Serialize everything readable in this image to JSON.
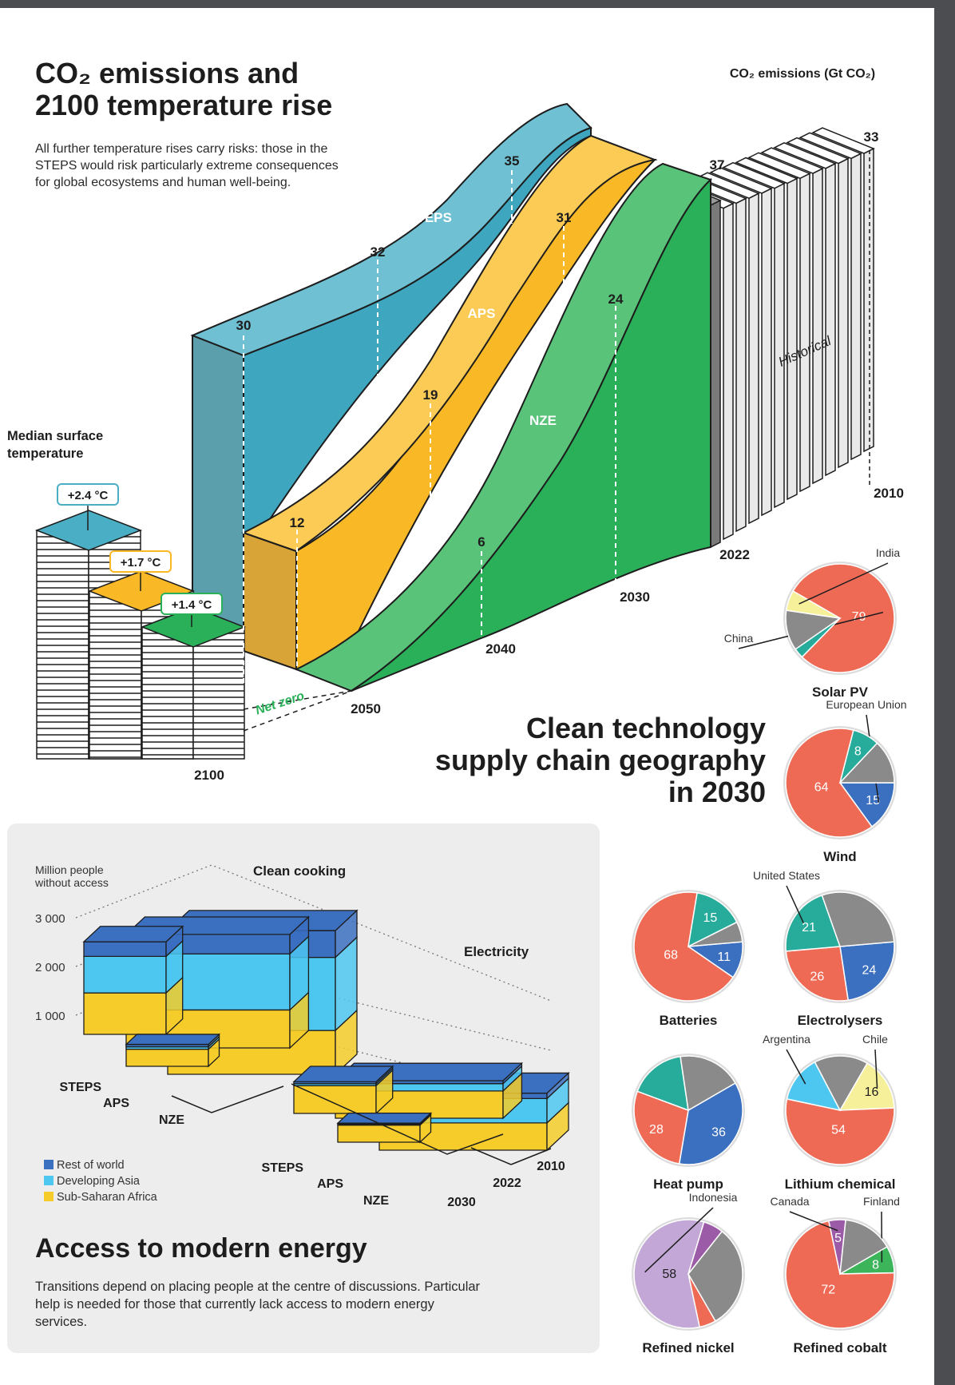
{
  "emissions": {
    "title_line1": "CO₂ emissions and",
    "title_line2": "2100 temperature rise",
    "subtitle": "All further temperature rises carry risks: those in the STEPS would risk particularly extreme consequences for global ecosystems and human well-being.",
    "y_label": "CO₂ emissions (Gt CO₂)",
    "historical_label": "Historical",
    "net_zero_label": "Net zero",
    "temperature_label_line1": "Median surface",
    "temperature_label_line2": "temperature",
    "year_labels": [
      "2010",
      "2022",
      "2030",
      "2040",
      "2050",
      "2100"
    ]
  },
  "clean_tech": {
    "title_line1": "Clean technology",
    "title_line2": "supply chain geography",
    "title_line3": "in 2030"
  },
  "access": {
    "title": "Access to modern energy",
    "subtitle": "Transitions depend on placing people at the centre of discussions. Particular help is needed for those that currently lack access to modern energy services.",
    "y_label_line1": "Million people",
    "y_label_line2": "without access",
    "y_ticks": [
      "3 000",
      "2 000",
      "1 000"
    ],
    "group_cooking": "Clean cooking",
    "group_electricity": "Electricity",
    "legend": [
      "Rest of world",
      "Developing Asia",
      "Sub-Saharan Africa"
    ],
    "year_labels": [
      "2010",
      "2022",
      "2030"
    ],
    "scenarios": [
      "STEPS",
      "APS",
      "NZE"
    ]
  },
  "colors": {
    "steps": "#4aaec4",
    "aps": "#f9b826",
    "nze": "#2bb05a",
    "china": "#ef6a55",
    "grey": "#8a8a8a",
    "teal": "#27ab9a",
    "blue": "#3b6fbf",
    "cyan": "#4dc7f0",
    "yellow": "#f5cc2a",
    "light_yellow": "#f7f09a",
    "lilac": "#c3a7d6",
    "purple": "#9b5ba7",
    "green": "#3bb45a"
  },
  "chart_data": [
    {
      "type": "area",
      "title": "CO₂ emissions and 2100 temperature rise",
      "ylabel": "CO₂ emissions (Gt CO₂)",
      "historical": {
        "x": [
          2010,
          2022
        ],
        "values": [
          33,
          37
        ]
      },
      "series": [
        {
          "name": "STEPS",
          "points": [
            {
              "x": 2030,
              "y": 35
            },
            {
              "x": 2040,
              "y": 32
            },
            {
              "x": 2050,
              "y": 30
            }
          ]
        },
        {
          "name": "APS",
          "points": [
            {
              "x": 2030,
              "y": 31
            },
            {
              "x": 2040,
              "y": 19
            },
            {
              "x": 2050,
              "y": 12
            }
          ]
        },
        {
          "name": "NZE",
          "points": [
            {
              "x": 2030,
              "y": 24
            },
            {
              "x": 2040,
              "y": 6
            },
            {
              "x": 2050,
              "y": 0
            }
          ]
        }
      ],
      "temperature_2100": [
        {
          "scenario": "STEPS",
          "label": "+2.4 °C"
        },
        {
          "scenario": "APS",
          "label": "+1.7 °C"
        },
        {
          "scenario": "NZE",
          "label": "+1.4 °C"
        }
      ]
    },
    {
      "type": "pie",
      "title": "Clean technology supply chain geography in 2030",
      "charts": [
        {
          "name": "Solar PV",
          "slices": [
            {
              "label": "China",
              "value": 79,
              "color": "china",
              "text": "79"
            },
            {
              "label": "",
              "value": 3,
              "color": "teal",
              "text": ""
            },
            {
              "label": "",
              "value": 12,
              "color": "grey",
              "text": ""
            },
            {
              "label": "India",
              "value": 6,
              "color": "light_yellow",
              "text": ""
            }
          ]
        },
        {
          "name": "Wind",
          "slices": [
            {
              "label": "European Union",
              "value": 15,
              "color": "blue",
              "text": "15"
            },
            {
              "label": "",
              "value": 64,
              "color": "china",
              "text": "64"
            },
            {
              "label": "",
              "value": 8,
              "color": "teal",
              "text": "8"
            },
            {
              "label": "",
              "value": 13,
              "color": "grey",
              "text": ""
            }
          ]
        },
        {
          "name": "Batteries",
          "slices": [
            {
              "label": "",
              "value": 11,
              "color": "blue",
              "text": "11"
            },
            {
              "label": "",
              "value": 68,
              "color": "china",
              "text": "68"
            },
            {
              "label": "",
              "value": 15,
              "color": "teal",
              "text": "15"
            },
            {
              "label": "",
              "value": 6,
              "color": "grey",
              "text": ""
            }
          ]
        },
        {
          "name": "Electrolysers",
          "slices": [
            {
              "label": "",
              "value": 24,
              "color": "blue",
              "text": "24"
            },
            {
              "label": "",
              "value": 26,
              "color": "china",
              "text": "26"
            },
            {
              "label": "United States",
              "value": 21,
              "color": "teal",
              "text": "21"
            },
            {
              "label": "",
              "value": 29,
              "color": "grey",
              "text": ""
            }
          ]
        },
        {
          "name": "Heat pump",
          "slices": [
            {
              "label": "",
              "value": 36,
              "color": "blue",
              "text": "36"
            },
            {
              "label": "",
              "value": 28,
              "color": "china",
              "text": "28"
            },
            {
              "label": "",
              "value": 17,
              "color": "teal",
              "text": ""
            },
            {
              "label": "",
              "value": 19,
              "color": "grey",
              "text": ""
            }
          ]
        },
        {
          "name": "Lithium chemical",
          "slices": [
            {
              "label": "Chile",
              "value": 16,
              "color": "light_yellow",
              "text": "16"
            },
            {
              "label": "",
              "value": 54,
              "color": "china",
              "text": "54"
            },
            {
              "label": "Argentina",
              "value": 14,
              "color": "cyan",
              "text": ""
            },
            {
              "label": "",
              "value": 16,
              "color": "grey",
              "text": ""
            }
          ]
        },
        {
          "name": "Refined nickel",
          "slices": [
            {
              "label": "",
              "value": 5,
              "color": "china",
              "text": ""
            },
            {
              "label": "Indonesia",
              "value": 58,
              "color": "lilac",
              "text": "58"
            },
            {
              "label": "",
              "value": 6,
              "color": "purple",
              "text": ""
            },
            {
              "label": "",
              "value": 31,
              "color": "grey",
              "text": ""
            }
          ]
        },
        {
          "name": "Refined cobalt",
          "slices": [
            {
              "label": "Finland",
              "value": 8,
              "color": "green",
              "text": "8"
            },
            {
              "label": "",
              "value": 72,
              "color": "china",
              "text": "72"
            },
            {
              "label": "Canada",
              "value": 5,
              "color": "purple",
              "text": "5"
            },
            {
              "label": "",
              "value": 15,
              "color": "grey",
              "text": ""
            }
          ]
        }
      ]
    },
    {
      "type": "bar",
      "title": "Access to modern energy",
      "ylabel": "Million people without access",
      "ylim": [
        0,
        3000
      ],
      "stack_order": [
        "Sub-Saharan Africa",
        "Developing Asia",
        "Rest of world"
      ],
      "groups": [
        {
          "name": "Clean cooking",
          "bars": [
            {
              "label": "2010",
              "values": [
                900,
                1500,
                550
              ]
            },
            {
              "label": "2022",
              "values": [
                780,
                1150,
                400
              ]
            },
            {
              "label": "STEPS 2030",
              "values": [
                850,
                750,
                300
              ]
            },
            {
              "label": "APS 2030",
              "values": [
                350,
                50,
                50
              ]
            },
            {
              "label": "NZE 2030",
              "values": [
                0,
                0,
                0
              ]
            }
          ]
        },
        {
          "name": "Electricity",
          "bars": [
            {
              "label": "2010",
              "values": [
                560,
                500,
                110
              ]
            },
            {
              "label": "2022",
              "values": [
                560,
                150,
                60
              ]
            },
            {
              "label": "STEPS 2030",
              "values": [
                570,
                40,
                40
              ]
            },
            {
              "label": "APS 2030",
              "values": [
                350,
                20,
                20
              ]
            },
            {
              "label": "NZE 2030",
              "values": [
                0,
                0,
                0
              ]
            }
          ]
        }
      ]
    }
  ]
}
